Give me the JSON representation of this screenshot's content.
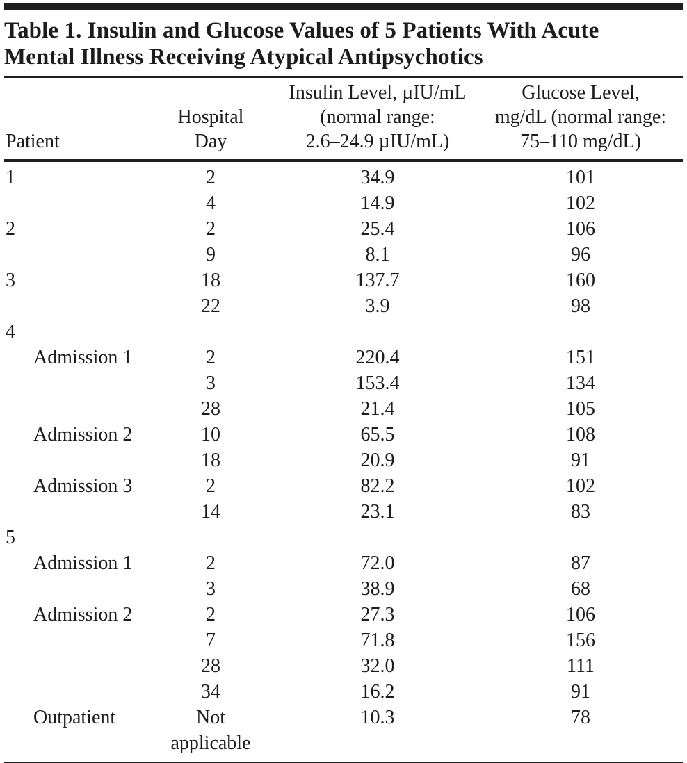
{
  "page": {
    "background": "#ffffff",
    "text_color": "#1c1c1c",
    "rule_color": "#1e1e1e"
  },
  "table": {
    "title": "Table 1. Insulin and Glucose Values of 5 Patients With Acute\nMental Illness Receiving Atypical Antipsychotics",
    "header": {
      "patient": "Patient",
      "hospital_day": "Hospital\nDay",
      "insulin": "Insulin Level, µIU/mL\n(normal range:\n2.6–24.9 µIU/mL)",
      "glucose": "Glucose Level,\nmg/dL (normal range:\n75–110 mg/dL)"
    },
    "rows": [
      {
        "patient": "1",
        "indent": false,
        "day": "2",
        "insulin": "34.9",
        "glucose": "101"
      },
      {
        "patient": "",
        "indent": false,
        "day": "4",
        "insulin": "14.9",
        "glucose": "102"
      },
      {
        "patient": "2",
        "indent": false,
        "day": "2",
        "insulin": "25.4",
        "glucose": "106"
      },
      {
        "patient": "",
        "indent": false,
        "day": "9",
        "insulin": "8.1",
        "glucose": "96"
      },
      {
        "patient": "3",
        "indent": false,
        "day": "18",
        "insulin": "137.7",
        "glucose": "160"
      },
      {
        "patient": "",
        "indent": false,
        "day": "22",
        "insulin": "3.9",
        "glucose": "98"
      },
      {
        "patient": "4",
        "indent": false,
        "day": "",
        "insulin": "",
        "glucose": ""
      },
      {
        "patient": "Admission 1",
        "indent": true,
        "day": "2",
        "insulin": "220.4",
        "glucose": "151"
      },
      {
        "patient": "",
        "indent": false,
        "day": "3",
        "insulin": "153.4",
        "glucose": "134"
      },
      {
        "patient": "",
        "indent": false,
        "day": "28",
        "insulin": "21.4",
        "glucose": "105"
      },
      {
        "patient": "Admission 2",
        "indent": true,
        "day": "10",
        "insulin": "65.5",
        "glucose": "108"
      },
      {
        "patient": "",
        "indent": false,
        "day": "18",
        "insulin": "20.9",
        "glucose": "91"
      },
      {
        "patient": "Admission 3",
        "indent": true,
        "day": "2",
        "insulin": "82.2",
        "glucose": "102"
      },
      {
        "patient": "",
        "indent": false,
        "day": "14",
        "insulin": "23.1",
        "glucose": "83"
      },
      {
        "patient": "5",
        "indent": false,
        "day": "",
        "insulin": "",
        "glucose": ""
      },
      {
        "patient": "Admission 1",
        "indent": true,
        "day": "2",
        "insulin": "72.0",
        "glucose": "87"
      },
      {
        "patient": "",
        "indent": false,
        "day": "3",
        "insulin": "38.9",
        "glucose": "68"
      },
      {
        "patient": "Admission 2",
        "indent": true,
        "day": "2",
        "insulin": "27.3",
        "glucose": "106"
      },
      {
        "patient": "",
        "indent": false,
        "day": "7",
        "insulin": "71.8",
        "glucose": "156"
      },
      {
        "patient": "",
        "indent": false,
        "day": "28",
        "insulin": "32.0",
        "glucose": "111"
      },
      {
        "patient": "",
        "indent": false,
        "day": "34",
        "insulin": "16.2",
        "glucose": "91"
      },
      {
        "patient": "Outpatient",
        "indent": true,
        "day": "Not\napplicable",
        "insulin": "10.3",
        "glucose": "78"
      }
    ]
  }
}
